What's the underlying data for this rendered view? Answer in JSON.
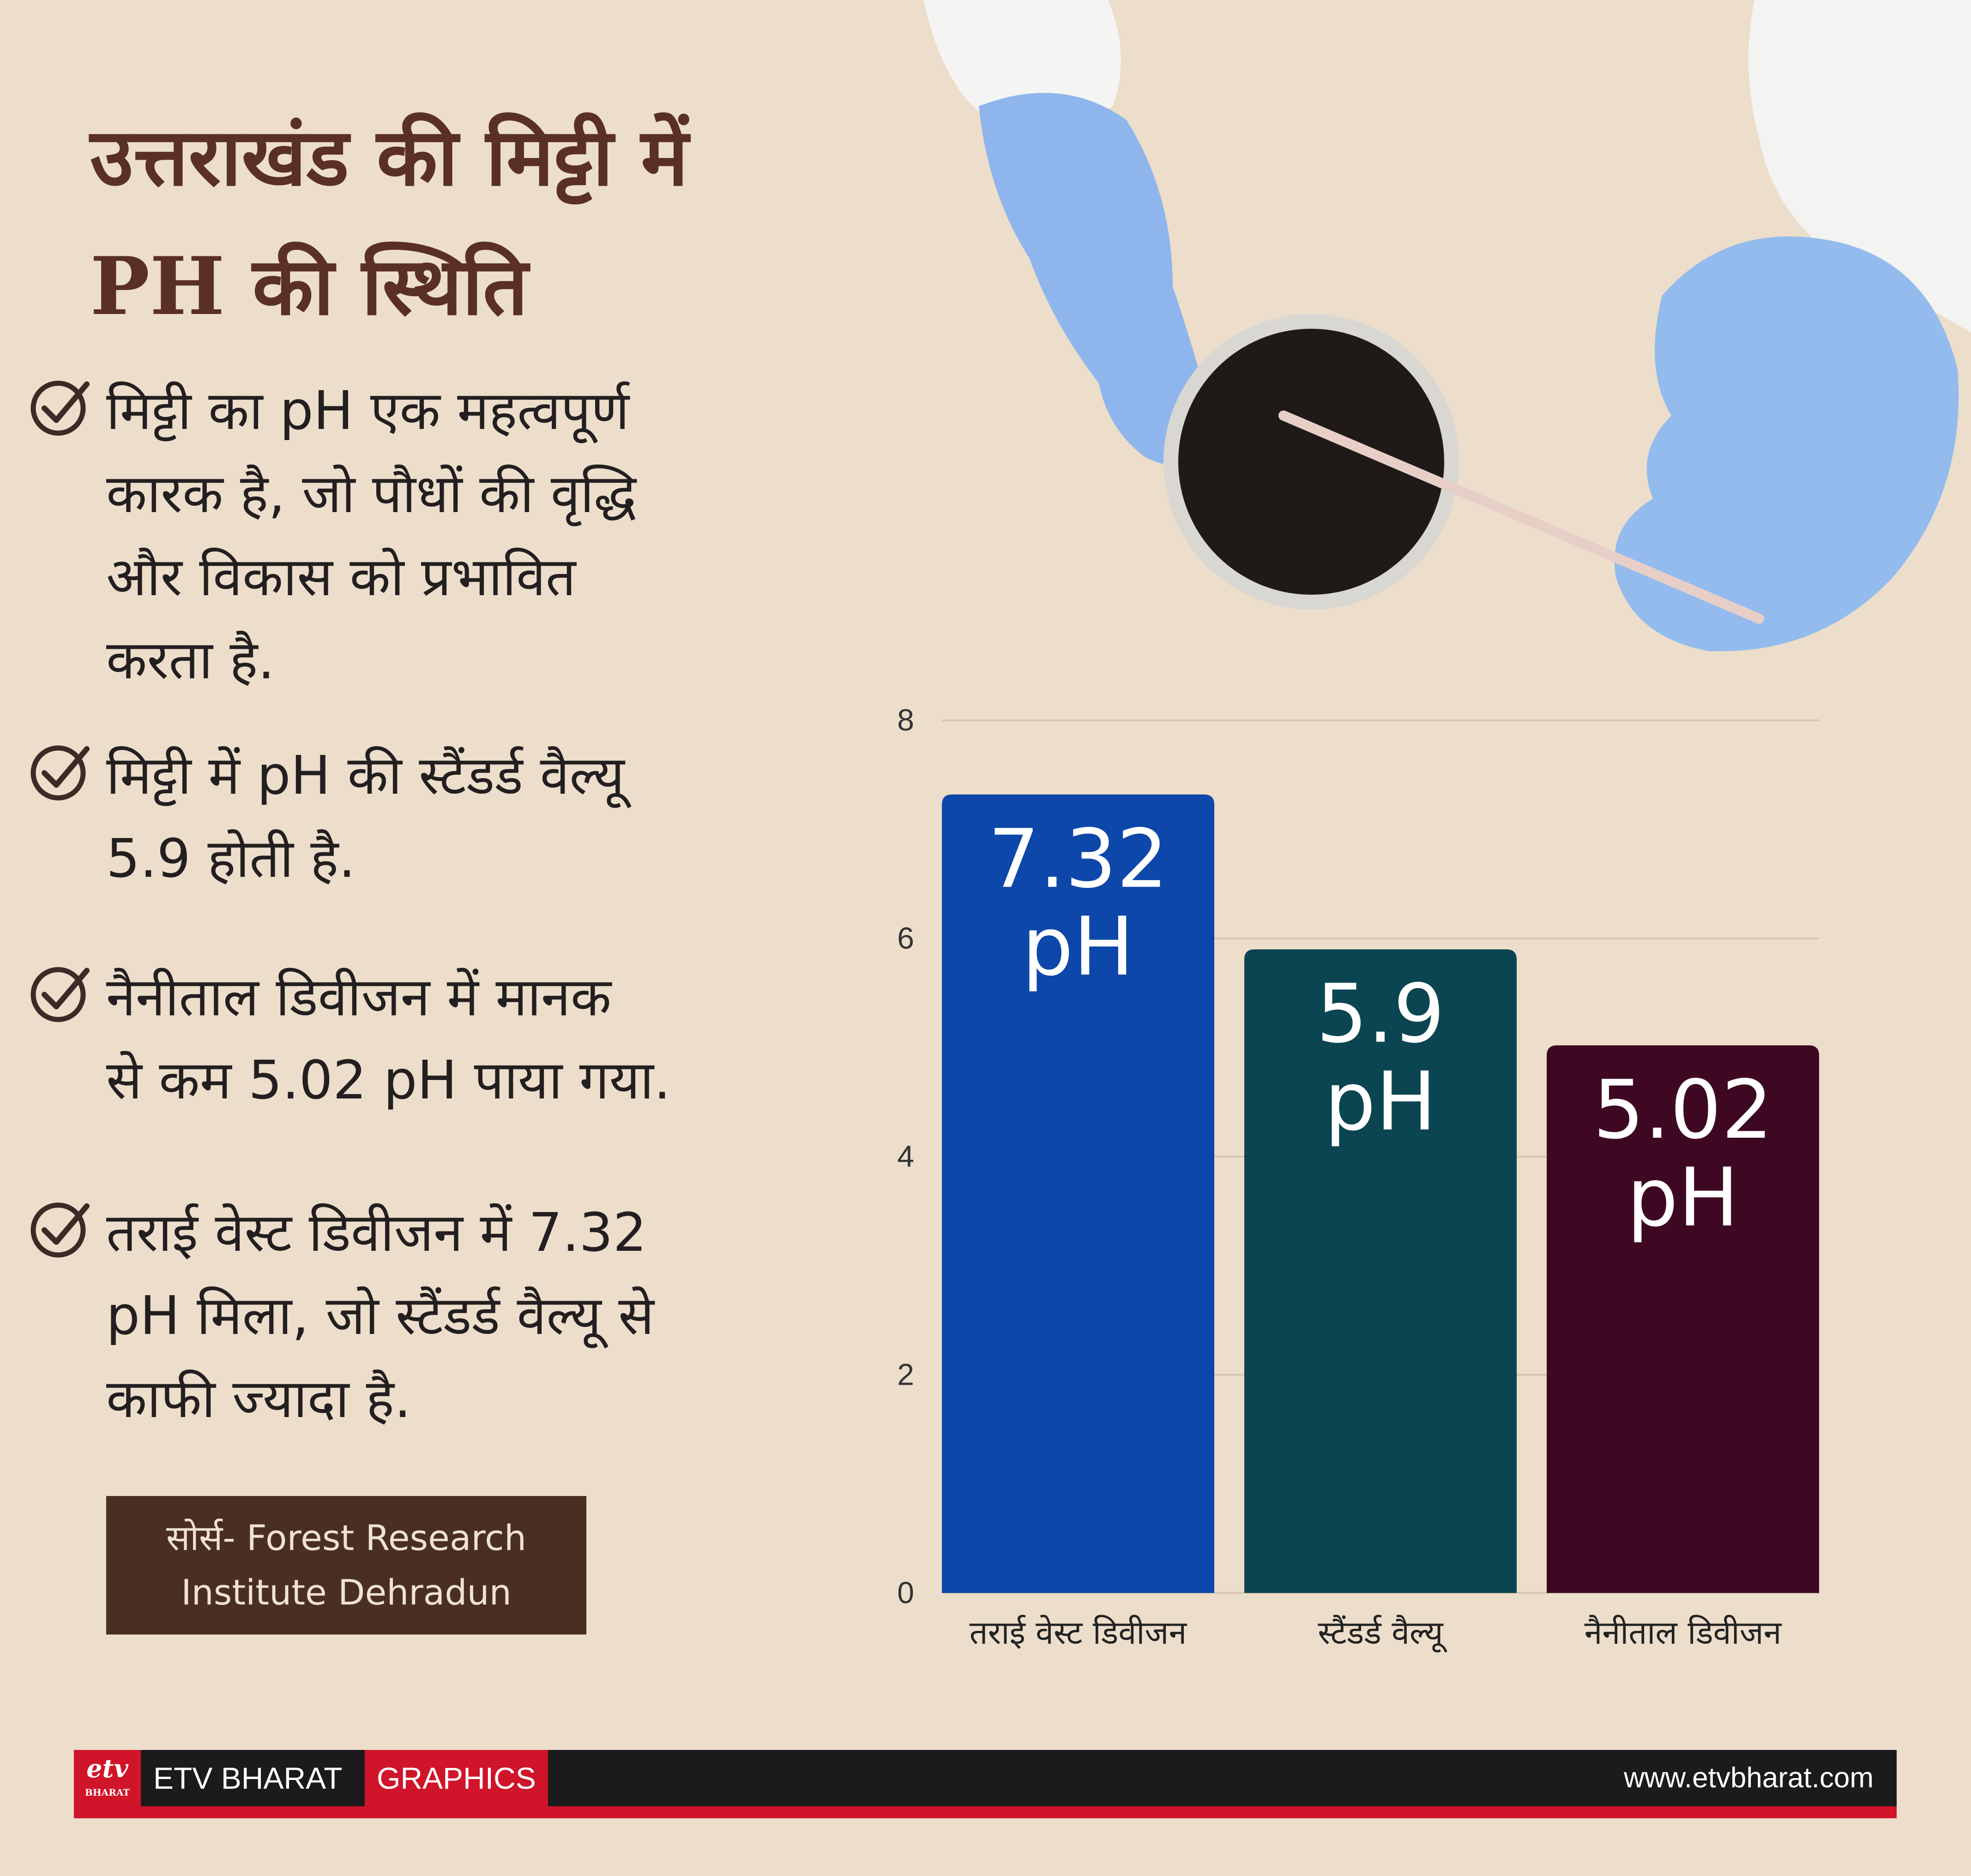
{
  "title": {
    "line1": "उत्तराखंड की मिट्टी में",
    "line2": "PH की स्थिति"
  },
  "bullets": [
    {
      "lines": [
        "मिट्टी का pH एक महत्वपूर्ण",
        "कारक है, जो पौधों की वृद्धि",
        "और विकास को प्रभावित",
        "करता है."
      ]
    },
    {
      "lines": [
        "मिट्टी में pH की स्टैंडर्ड वैल्यू",
        "5.9 होती है."
      ]
    },
    {
      "lines": [
        "नैनीताल डिवीजन में मानक",
        "से कम 5.02 pH पाया गया."
      ]
    },
    {
      "lines": [
        "तराई वेस्ट डिवीजन में 7.32",
        "pH मिला, जो स्टैंडर्ड वैल्यू से",
        "काफी ज्यादा है."
      ]
    }
  ],
  "source": {
    "line1": "सोर्स- Forest Research",
    "line2": "Institute Dehradun"
  },
  "chart_data": {
    "type": "bar",
    "categories": [
      "तराई वेस्ट डिवीजन",
      "स्टैंडर्ड वैल्यू",
      "नैनीताल डिवीजन"
    ],
    "values": [
      7.32,
      5.9,
      5.02
    ],
    "data_labels": [
      "7.32",
      "5.9",
      "5.02"
    ],
    "value_unit": "pH",
    "bar_colors": [
      "#0d47a9",
      "#0b4552",
      "#3e0823"
    ],
    "yticks": [
      0,
      2,
      4,
      6,
      8
    ],
    "ylim": [
      0,
      8
    ],
    "grid": true
  },
  "footer": {
    "logo_text": "etv",
    "logo_sub": "BHARAT",
    "brand": "ETV BHARAT",
    "tag": "GRAPHICS",
    "url": "www.etvbharat.com"
  },
  "colors": {
    "background": "#ecdecb",
    "title": "#5a3024",
    "source_box": "#4b2e22",
    "footer_red": "#d0142a"
  }
}
